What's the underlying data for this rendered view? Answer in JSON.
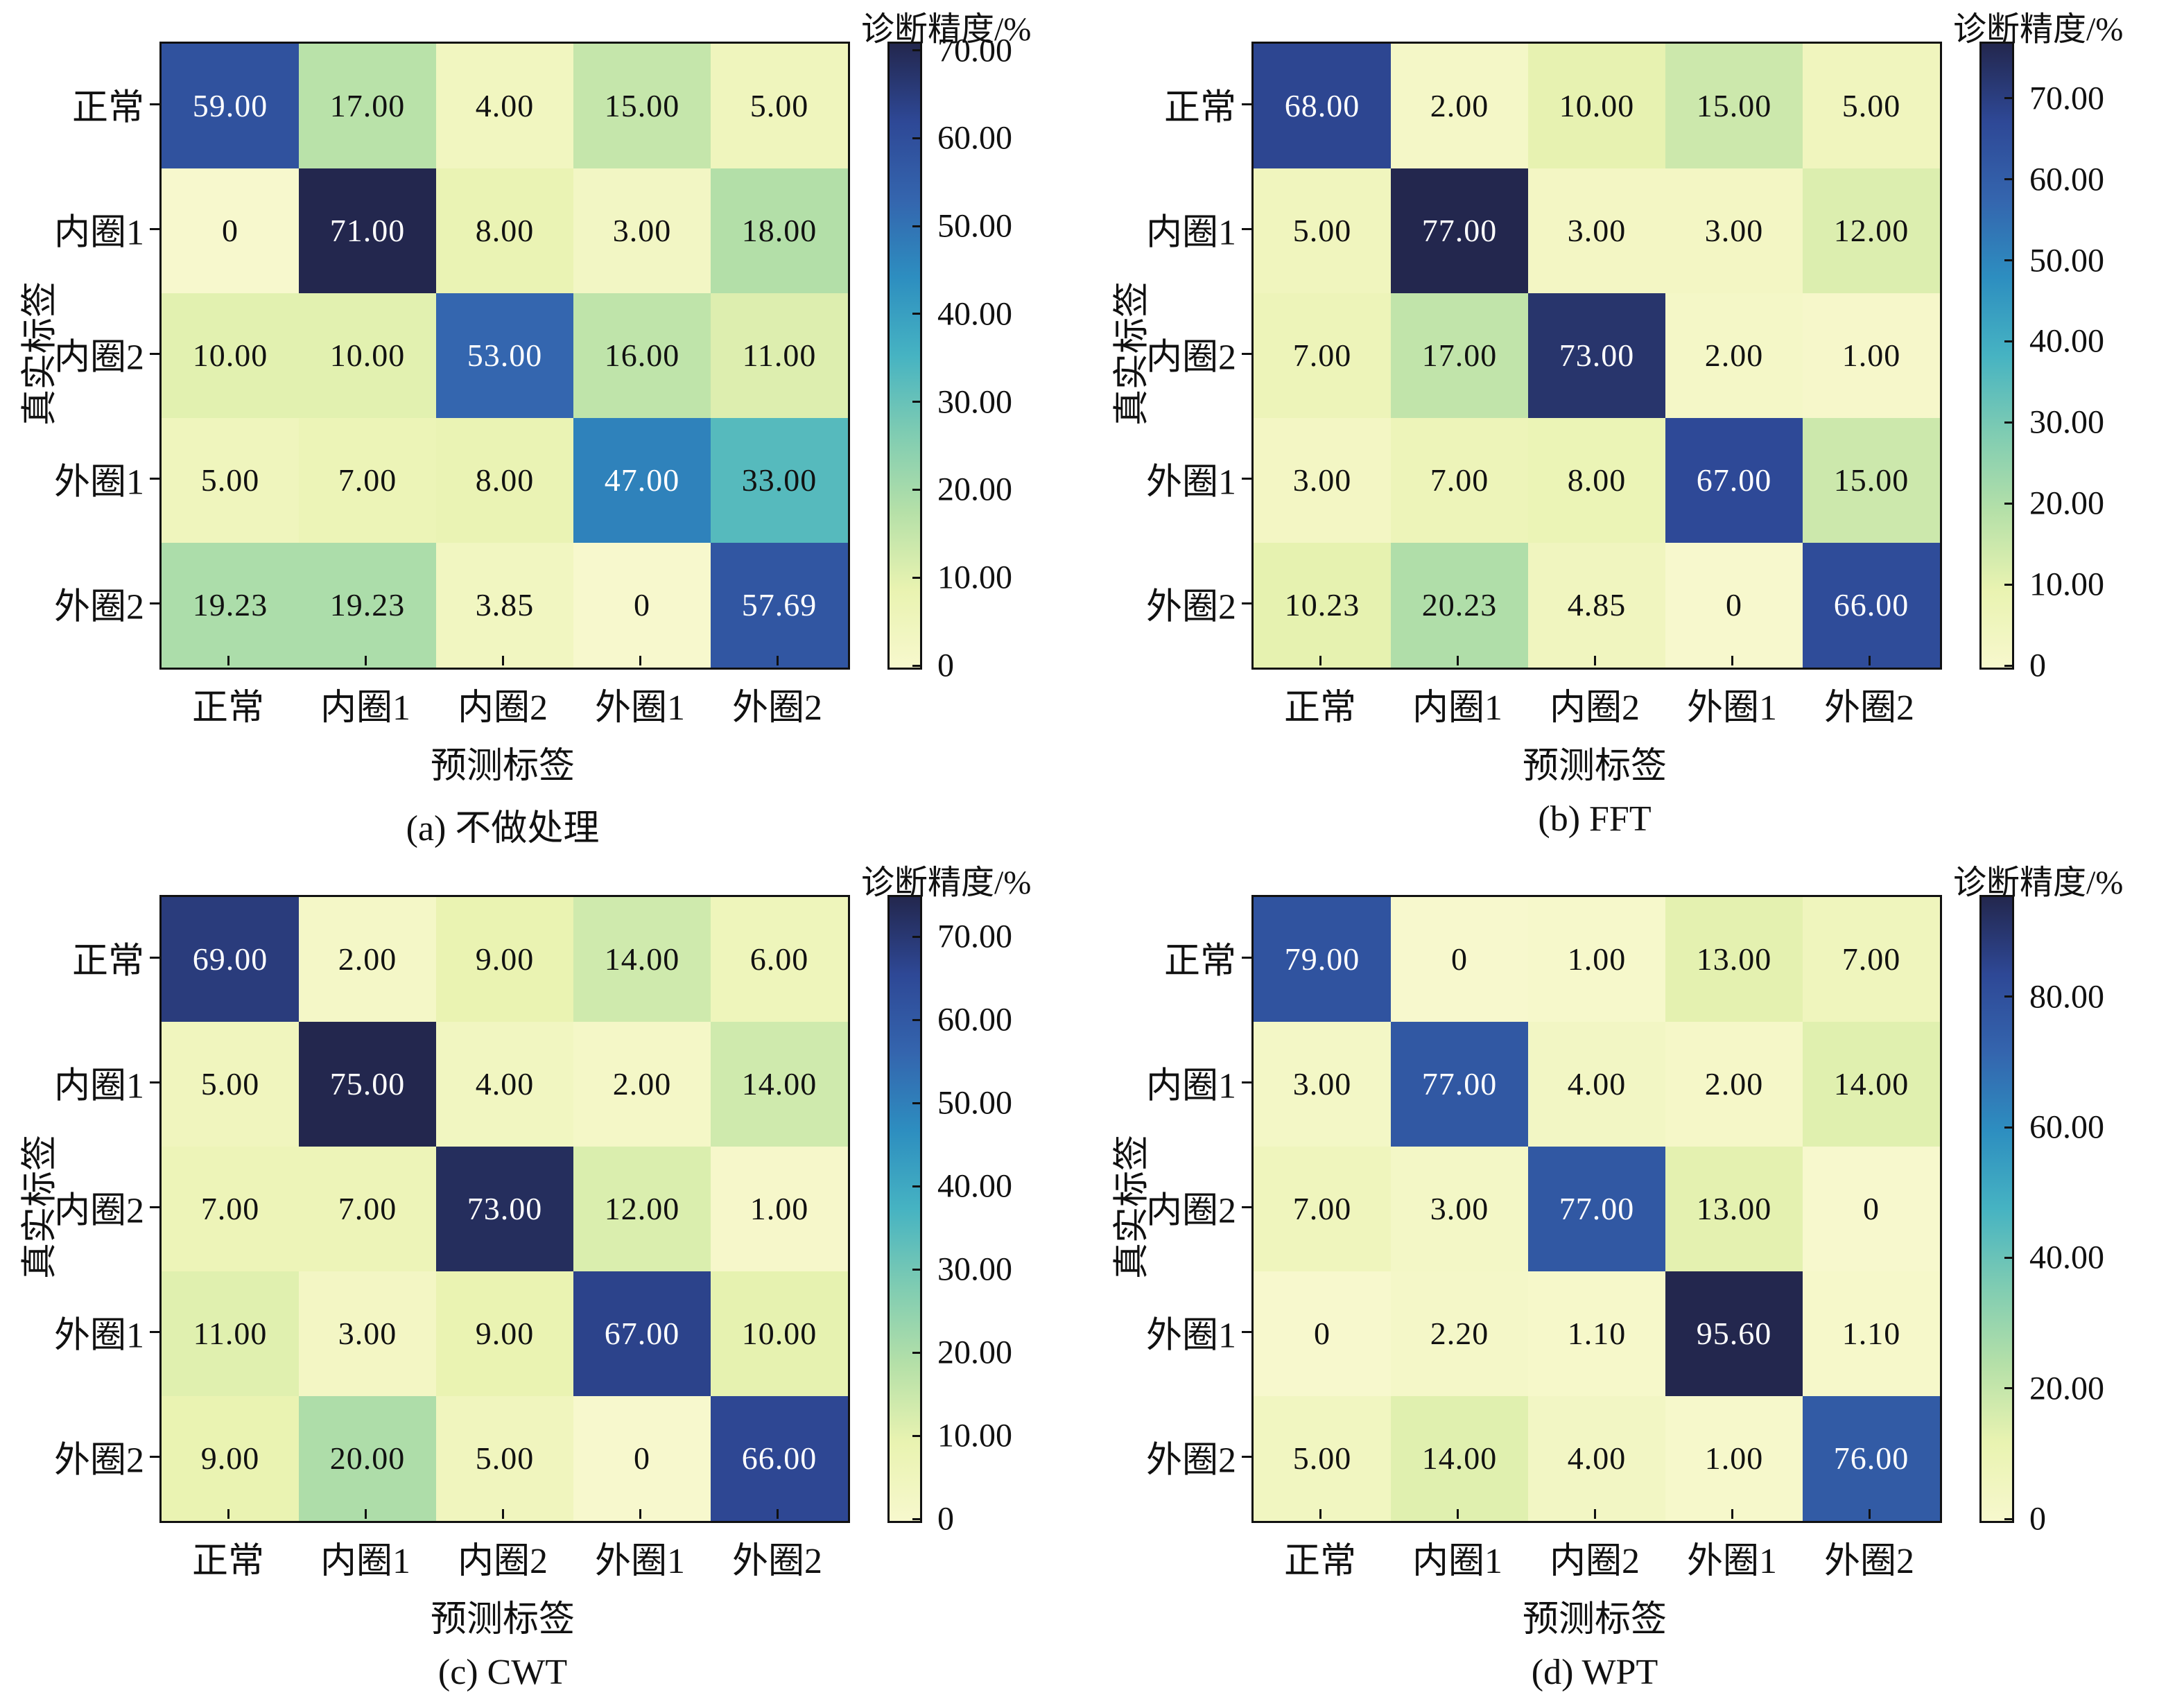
{
  "figure": {
    "ylabel": "真实标签",
    "xlabel": "预测标签",
    "colorbar_title": "诊断精度/%",
    "categories": [
      "正常",
      "内圈1",
      "内圈2",
      "外圈1",
      "外圈2"
    ],
    "colormap_anchors": [
      "#f7f8cd",
      "#e9f3b1",
      "#b5e0a8",
      "#7fccb2",
      "#46b3c2",
      "#2d8ec0",
      "#3465ae",
      "#2e4896",
      "#23274e"
    ],
    "cell_text_light": "#ffffff",
    "cell_text_dark": "#111111",
    "axis_color": "#111111"
  },
  "panels": [
    {
      "caption": "(a) 不做处理",
      "vmax": 71,
      "cticks": [
        "70.00",
        "60.00",
        "50.00",
        "40.00",
        "30.00",
        "20.00",
        "10.00",
        "0"
      ],
      "cells": [
        [
          "59.00",
          "17.00",
          "4.00",
          "15.00",
          "5.00"
        ],
        [
          "0",
          "71.00",
          "8.00",
          "3.00",
          "18.00"
        ],
        [
          "10.00",
          "10.00",
          "53.00",
          "16.00",
          "11.00"
        ],
        [
          "5.00",
          "7.00",
          "8.00",
          "47.00",
          "33.00"
        ],
        [
          "19.23",
          "19.23",
          "3.85",
          "0",
          "57.69"
        ]
      ]
    },
    {
      "caption": "(b) FFT",
      "vmax": 77,
      "cticks": [
        "70.00",
        "60.00",
        "50.00",
        "40.00",
        "30.00",
        "20.00",
        "10.00",
        "0"
      ],
      "cells": [
        [
          "68.00",
          "2.00",
          "10.00",
          "15.00",
          "5.00"
        ],
        [
          "5.00",
          "77.00",
          "3.00",
          "3.00",
          "12.00"
        ],
        [
          "7.00",
          "17.00",
          "73.00",
          "2.00",
          "1.00"
        ],
        [
          "3.00",
          "7.00",
          "8.00",
          "67.00",
          "15.00"
        ],
        [
          "10.23",
          "20.23",
          "4.85",
          "0",
          "66.00"
        ]
      ]
    },
    {
      "caption": "(c) CWT",
      "vmax": 75,
      "cticks": [
        "70.00",
        "60.00",
        "50.00",
        "40.00",
        "30.00",
        "20.00",
        "10.00",
        "0"
      ],
      "cells": [
        [
          "69.00",
          "2.00",
          "9.00",
          "14.00",
          "6.00"
        ],
        [
          "5.00",
          "75.00",
          "4.00",
          "2.00",
          "14.00"
        ],
        [
          "7.00",
          "7.00",
          "73.00",
          "12.00",
          "1.00"
        ],
        [
          "11.00",
          "3.00",
          "9.00",
          "67.00",
          "10.00"
        ],
        [
          "9.00",
          "20.00",
          "5.00",
          "0",
          "66.00"
        ]
      ]
    },
    {
      "caption": "(d) WPT",
      "vmax": 95.6,
      "cticks": [
        "80.00",
        "60.00",
        "40.00",
        "20.00",
        "0"
      ],
      "cells": [
        [
          "79.00",
          "0",
          "1.00",
          "13.00",
          "7.00"
        ],
        [
          "3.00",
          "77.00",
          "4.00",
          "2.00",
          "14.00"
        ],
        [
          "7.00",
          "3.00",
          "77.00",
          "13.00",
          "0"
        ],
        [
          "0",
          "2.20",
          "1.10",
          "95.60",
          "1.10"
        ],
        [
          "5.00",
          "14.00",
          "4.00",
          "1.00",
          "76.00"
        ]
      ]
    }
  ],
  "chart_data": [
    {
      "type": "heatmap",
      "title": "(a) 不做处理",
      "xlabel": "预测标签",
      "ylabel": "真实标签",
      "colorbar_label": "诊断精度/%",
      "x_categories": [
        "正常",
        "内圈1",
        "内圈2",
        "外圈1",
        "外圈2"
      ],
      "y_categories": [
        "正常",
        "内圈1",
        "内圈2",
        "外圈1",
        "外圈2"
      ],
      "values": [
        [
          59.0,
          17.0,
          4.0,
          15.0,
          5.0
        ],
        [
          0,
          71.0,
          8.0,
          3.0,
          18.0
        ],
        [
          10.0,
          10.0,
          53.0,
          16.0,
          11.0
        ],
        [
          5.0,
          7.0,
          8.0,
          47.0,
          33.0
        ],
        [
          19.23,
          19.23,
          3.85,
          0,
          57.69
        ]
      ],
      "vmin": 0,
      "vmax": 71,
      "colorbar_ticks": [
        0,
        10,
        20,
        30,
        40,
        50,
        60,
        70
      ],
      "colormap": "YlGnBu",
      "legend_position": "right-colorbar",
      "grid": false
    },
    {
      "type": "heatmap",
      "title": "(b) FFT",
      "xlabel": "预测标签",
      "ylabel": "真实标签",
      "colorbar_label": "诊断精度/%",
      "x_categories": [
        "正常",
        "内圈1",
        "内圈2",
        "外圈1",
        "外圈2"
      ],
      "y_categories": [
        "正常",
        "内圈1",
        "内圈2",
        "外圈1",
        "外圈2"
      ],
      "values": [
        [
          68.0,
          2.0,
          10.0,
          15.0,
          5.0
        ],
        [
          5.0,
          77.0,
          3.0,
          3.0,
          12.0
        ],
        [
          7.0,
          17.0,
          73.0,
          2.0,
          1.0
        ],
        [
          3.0,
          7.0,
          8.0,
          67.0,
          15.0
        ],
        [
          10.23,
          20.23,
          4.85,
          0,
          66.0
        ]
      ],
      "vmin": 0,
      "vmax": 77,
      "colorbar_ticks": [
        0,
        10,
        20,
        30,
        40,
        50,
        60,
        70
      ],
      "colormap": "YlGnBu",
      "legend_position": "right-colorbar",
      "grid": false
    },
    {
      "type": "heatmap",
      "title": "(c) CWT",
      "xlabel": "预测标签",
      "ylabel": "真实标签",
      "colorbar_label": "诊断精度/%",
      "x_categories": [
        "正常",
        "内圈1",
        "内圈2",
        "外圈1",
        "外圈2"
      ],
      "y_categories": [
        "正常",
        "内圈1",
        "内圈2",
        "外圈1",
        "外圈2"
      ],
      "values": [
        [
          69.0,
          2.0,
          9.0,
          14.0,
          6.0
        ],
        [
          5.0,
          75.0,
          4.0,
          2.0,
          14.0
        ],
        [
          7.0,
          7.0,
          73.0,
          12.0,
          1.0
        ],
        [
          11.0,
          3.0,
          9.0,
          67.0,
          10.0
        ],
        [
          9.0,
          20.0,
          5.0,
          0,
          66.0
        ]
      ],
      "vmin": 0,
      "vmax": 75,
      "colorbar_ticks": [
        0,
        10,
        20,
        30,
        40,
        50,
        60,
        70
      ],
      "colormap": "YlGnBu",
      "legend_position": "right-colorbar",
      "grid": false
    },
    {
      "type": "heatmap",
      "title": "(d) WPT",
      "xlabel": "预测标签",
      "ylabel": "真实标签",
      "colorbar_label": "诊断精度/%",
      "x_categories": [
        "正常",
        "内圈1",
        "内圈2",
        "外圈1",
        "外圈2"
      ],
      "y_categories": [
        "正常",
        "内圈1",
        "内圈2",
        "外圈1",
        "外圈2"
      ],
      "values": [
        [
          79.0,
          0,
          1.0,
          13.0,
          7.0
        ],
        [
          3.0,
          77.0,
          4.0,
          2.0,
          14.0
        ],
        [
          7.0,
          3.0,
          77.0,
          13.0,
          0
        ],
        [
          0,
          2.2,
          1.1,
          95.6,
          1.1
        ],
        [
          5.0,
          14.0,
          4.0,
          1.0,
          76.0
        ]
      ],
      "vmin": 0,
      "vmax": 95.6,
      "colorbar_ticks": [
        0,
        20,
        40,
        60,
        80
      ],
      "colormap": "YlGnBu",
      "legend_position": "right-colorbar",
      "grid": false
    }
  ]
}
